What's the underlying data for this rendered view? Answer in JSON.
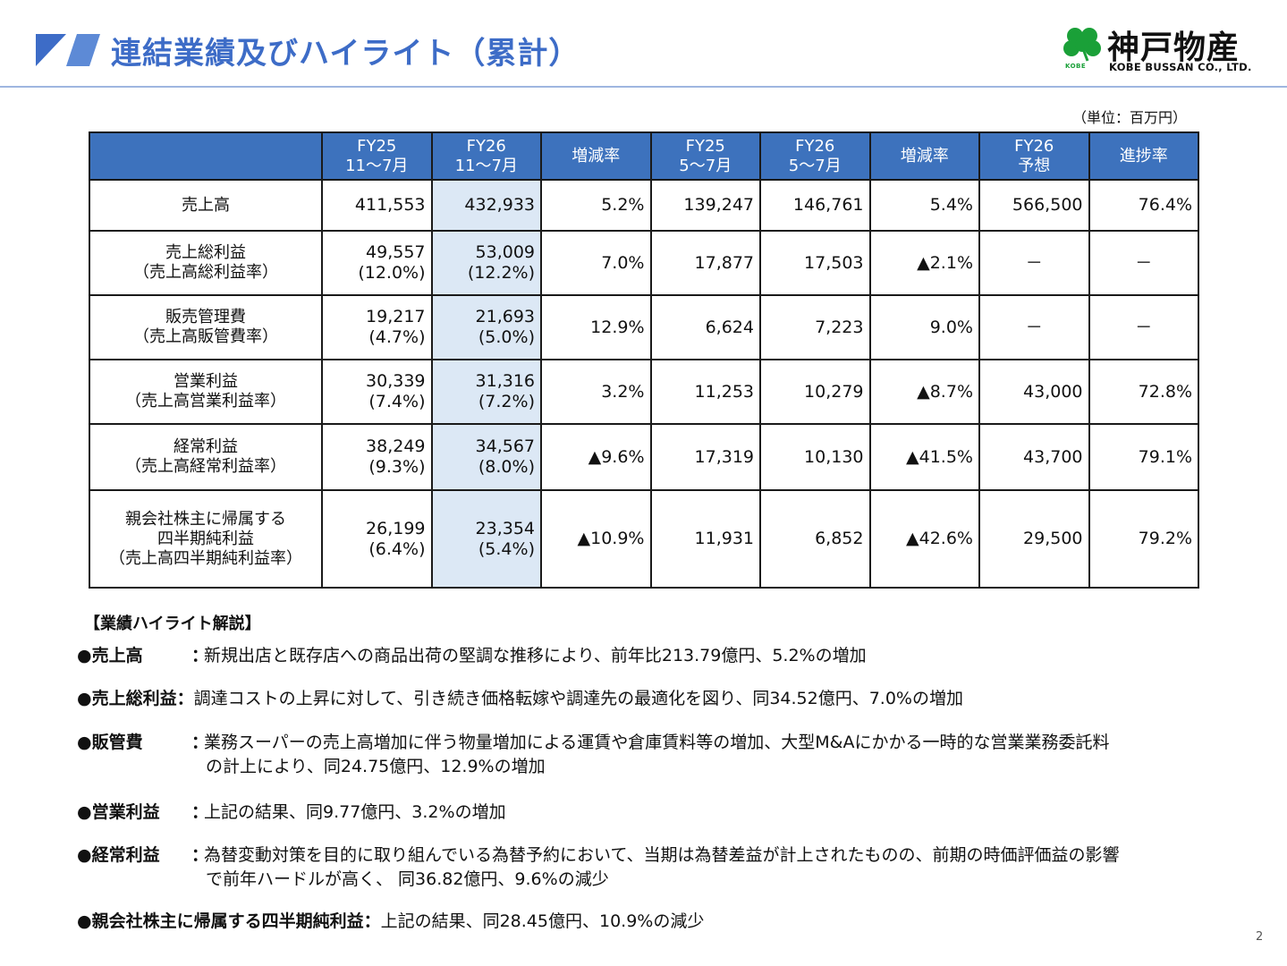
{
  "header": {
    "title": "連結業績及びハイライト（累計）",
    "brand_color": "#3d6cc7"
  },
  "logo": {
    "name": "神戸物産",
    "subtitle": "KOBE BUSSAN CO., LTD.",
    "mark_text": "KOBE"
  },
  "unit_label": "（単位：百万円）",
  "table": {
    "headers": [
      {
        "line1": "",
        "line2": ""
      },
      {
        "line1": "FY25",
        "line2": "11～7月"
      },
      {
        "line1": "FY26",
        "line2": "11～7月"
      },
      {
        "line1": "増減率",
        "line2": ""
      },
      {
        "line1": "FY25",
        "line2": "5～7月"
      },
      {
        "line1": "FY26",
        "line2": "5～7月"
      },
      {
        "line1": "増減率",
        "line2": ""
      },
      {
        "line1": "FY26",
        "line2": "予想"
      },
      {
        "line1": "進捗率",
        "line2": ""
      }
    ],
    "rows": [
      {
        "label": [
          "売上高"
        ],
        "cells": [
          [
            "411,553"
          ],
          [
            "432,933"
          ],
          [
            "5.2%"
          ],
          [
            "139,247"
          ],
          [
            "146,761"
          ],
          [
            "5.4%"
          ],
          [
            "566,500"
          ],
          [
            "76.4%"
          ]
        ]
      },
      {
        "label": [
          "売上総利益",
          "（売上高総利益率）"
        ],
        "cells": [
          [
            "49,557",
            "(12.0%)"
          ],
          [
            "53,009",
            "(12.2%)"
          ],
          [
            "7.0%"
          ],
          [
            "17,877"
          ],
          [
            "17,503"
          ],
          [
            "▲2.1%"
          ],
          [
            "－"
          ],
          [
            "－"
          ]
        ]
      },
      {
        "label": [
          "販売管理費",
          "（売上高販管費率）"
        ],
        "cells": [
          [
            "19,217",
            "(4.7%)"
          ],
          [
            "21,693",
            "(5.0%)"
          ],
          [
            "12.9%"
          ],
          [
            "6,624"
          ],
          [
            "7,223"
          ],
          [
            "9.0%"
          ],
          [
            "－"
          ],
          [
            "－"
          ]
        ]
      },
      {
        "label": [
          "営業利益",
          "（売上高営業利益率）"
        ],
        "cells": [
          [
            "30,339",
            "(7.4%)"
          ],
          [
            "31,316",
            "(7.2%)"
          ],
          [
            "3.2%"
          ],
          [
            "11,253"
          ],
          [
            "10,279"
          ],
          [
            "▲8.7%"
          ],
          [
            "43,000"
          ],
          [
            "72.8%"
          ]
        ]
      },
      {
        "label": [
          "経常利益",
          "（売上高経常利益率）"
        ],
        "cells": [
          [
            "38,249",
            "(9.3%)"
          ],
          [
            "34,567",
            "(8.0%)"
          ],
          [
            "▲9.6%"
          ],
          [
            "17,319"
          ],
          [
            "10,130"
          ],
          [
            "▲41.5%"
          ],
          [
            "43,700"
          ],
          [
            "79.1%"
          ]
        ]
      },
      {
        "label": [
          "親会社株主に帰属する",
          "四半期純利益",
          "（売上高四半期純利益率）"
        ],
        "cells": [
          [
            "26,199",
            "(6.4%)"
          ],
          [
            "23,354",
            "(5.4%)"
          ],
          [
            "▲10.9%"
          ],
          [
            "11,931"
          ],
          [
            "6,852"
          ],
          [
            "▲42.6%"
          ],
          [
            "29,500"
          ],
          [
            "79.2%"
          ]
        ]
      }
    ]
  },
  "highlights": {
    "title": "【業績ハイライト解説】",
    "items": [
      {
        "head": "●売上高",
        "colon": "：",
        "text": "新規出店と既存店への商品出荷の堅調な推移により、前年比213.79億円、5.2%の増加",
        "text2": ""
      },
      {
        "head": "●売上総利益：",
        "colon": "",
        "text": "調達コストの上昇に対して、引き続き価格転嫁や調達先の最適化を図り、同34.52億円、7.0%の増加",
        "text2": ""
      },
      {
        "head": "●販管費",
        "colon": "：",
        "text": "業務スーパーの売上高増加に伴う物量増加による運賃や倉庫賃料等の増加、大型M&Aにかかる一時的な営業業務委託料",
        "text2": "の計上により、同24.75億円、12.9%の増加"
      },
      {
        "head": "●営業利益",
        "colon": "：",
        "text": "上記の結果、同9.77億円、3.2%の増加",
        "text2": ""
      },
      {
        "head": "●経常利益",
        "colon": "：",
        "text": "為替変動対策を目的に取り組んでいる為替予約において、当期は為替差益が計上されたものの、前期の時価評価益の影響",
        "text2": "で前年ハードルが高く、 同36.82億円、9.6%の減少"
      },
      {
        "head": "●親会社株主に帰属する四半期純利益：",
        "colon": "",
        "text": "上記の結果、同28.45億円、10.9%の減少",
        "text2": ""
      }
    ]
  },
  "page_number": "2",
  "colors": {
    "table_header_bg": "#3d72bd",
    "highlight_column_bg": "#dce8f5",
    "logo_green": "#1aa038"
  }
}
